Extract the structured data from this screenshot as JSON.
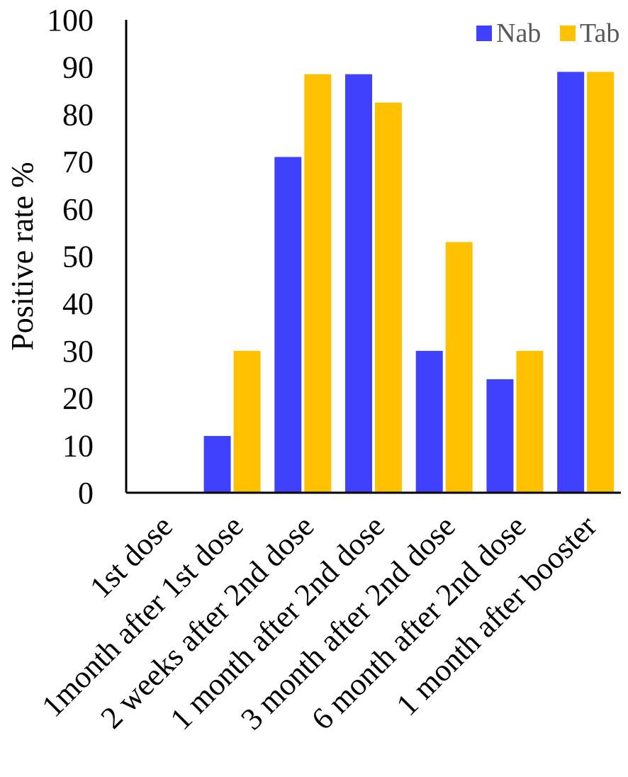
{
  "chart_data": {
    "type": "bar",
    "title": "",
    "xlabel": "",
    "ylabel": "Positive rate %",
    "ylim": [
      0,
      100
    ],
    "yticks": [
      "0",
      "10",
      "20",
      "30",
      "40",
      "50",
      "60",
      "70",
      "80",
      "90",
      "100"
    ],
    "categories": [
      "1st dose",
      "1month after 1st dose",
      "2 weeks after 2nd dose",
      "1 month after 2nd dose",
      "3 month after 2nd dose",
      "6 month after 2nd dose",
      "1 month after booster"
    ],
    "series": [
      {
        "name": "Nab",
        "color": "#4040FF",
        "values": [
          0,
          12,
          71,
          88.5,
          30,
          24,
          89
        ]
      },
      {
        "name": "Tab",
        "color": "#FFC000",
        "values": [
          0,
          30,
          88.5,
          82.5,
          53,
          30,
          89
        ]
      }
    ],
    "grid": false,
    "legend_position": "top-right"
  }
}
